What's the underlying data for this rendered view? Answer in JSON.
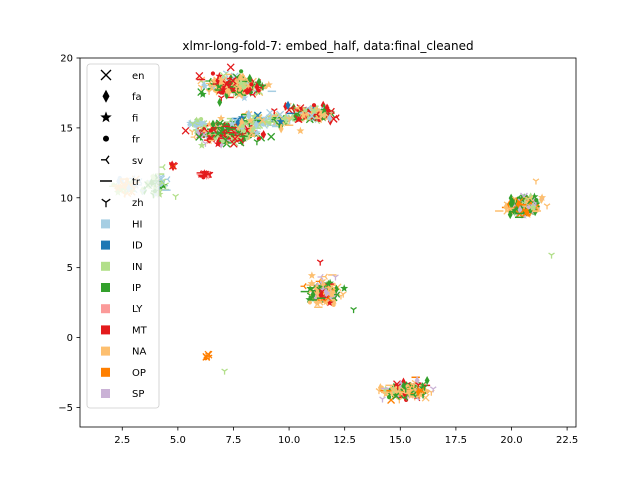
{
  "chart_data": {
    "type": "scatter",
    "title": "xlmr-long-fold-7: embed_half, data:final_cleaned",
    "xlabel": "",
    "ylabel": "",
    "xlim": [
      0.6,
      22.9
    ],
    "ylim": [
      -6.4,
      20.0
    ],
    "xticks": [
      2.5,
      5.0,
      7.5,
      10.0,
      12.5,
      15.0,
      17.5,
      20.0,
      22.5
    ],
    "xtick_labels": [
      "2.5",
      "5.0",
      "7.5",
      "10.0",
      "12.5",
      "15.0",
      "17.5",
      "20.0",
      "22.5"
    ],
    "yticks": [
      -5,
      0,
      5,
      10,
      15,
      20
    ],
    "ytick_labels": [
      "−5",
      "0",
      "5",
      "10",
      "15",
      "20"
    ],
    "grid": false,
    "legend_position": "upper-left",
    "marker_legend": [
      {
        "label": "en",
        "marker": "x-icon"
      },
      {
        "label": "fa",
        "marker": "thin-diamond-icon"
      },
      {
        "label": "fi",
        "marker": "star-icon"
      },
      {
        "label": "fr",
        "marker": "circle-icon"
      },
      {
        "label": "sv",
        "marker": "tri-left-icon"
      },
      {
        "label": "tr",
        "marker": "hline-icon"
      },
      {
        "label": "zh",
        "marker": "tri-down-icon"
      }
    ],
    "color_legend": [
      {
        "label": "HI",
        "color": "#a6cee3"
      },
      {
        "label": "ID",
        "color": "#1f78b4"
      },
      {
        "label": "IN",
        "color": "#b2df8a"
      },
      {
        "label": "IP",
        "color": "#33a02c"
      },
      {
        "label": "LY",
        "color": "#fb9a99"
      },
      {
        "label": "MT",
        "color": "#e31a1c"
      },
      {
        "label": "NA",
        "color": "#fdbf6f"
      },
      {
        "label": "OP",
        "color": "#ff7f00"
      },
      {
        "label": "SP",
        "color": "#cab2d6"
      }
    ],
    "clusters": [
      {
        "center": [
          7.5,
          18.0
        ],
        "spread": [
          1.2,
          0.7
        ],
        "n": 230,
        "mix": {
          "NA": 0.4,
          "MT": 0.25,
          "IP": 0.2,
          "HI": 0.08,
          "IN": 0.07
        }
      },
      {
        "center": [
          7.2,
          14.6
        ],
        "spread": [
          1.3,
          0.8
        ],
        "n": 260,
        "mix": {
          "IP": 0.4,
          "MT": 0.3,
          "NA": 0.15,
          "IN": 0.1,
          "SP": 0.05
        }
      },
      {
        "center": [
          8.8,
          15.5
        ],
        "spread": [
          1.5,
          0.6
        ],
        "n": 120,
        "mix": {
          "IN": 0.35,
          "HI": 0.25,
          "NA": 0.2,
          "ID": 0.1,
          "IP": 0.1
        }
      },
      {
        "center": [
          11.0,
          16.0
        ],
        "spread": [
          1.0,
          0.5
        ],
        "n": 160,
        "mix": {
          "MT": 0.3,
          "NA": 0.25,
          "IP": 0.2,
          "IN": 0.1,
          "ID": 0.05,
          "HI": 0.1
        }
      },
      {
        "center": [
          5.8,
          15.3
        ],
        "spread": [
          0.4,
          0.2
        ],
        "n": 20,
        "mix": {
          "HI": 0.6,
          "IN": 0.4
        }
      },
      {
        "center": [
          2.8,
          10.9
        ],
        "spread": [
          0.6,
          0.5
        ],
        "n": 60,
        "mix": {
          "NA": 0.55,
          "IN": 0.25,
          "HI": 0.2
        }
      },
      {
        "center": [
          4.0,
          11.0
        ],
        "spread": [
          0.5,
          0.7
        ],
        "n": 50,
        "mix": {
          "IN": 0.4,
          "IP": 0.3,
          "HI": 0.3
        }
      },
      {
        "center": [
          6.2,
          11.7
        ],
        "spread": [
          0.3,
          0.15
        ],
        "n": 18,
        "mix": {
          "MT": 0.85,
          "LY": 0.15
        }
      },
      {
        "center": [
          4.8,
          12.3
        ],
        "spread": [
          0.15,
          0.1
        ],
        "n": 6,
        "mix": {
          "MT": 0.5,
          "OP": 0.5
        }
      },
      {
        "center": [
          20.5,
          9.4
        ],
        "spread": [
          0.7,
          0.6
        ],
        "n": 210,
        "mix": {
          "IP": 0.35,
          "NA": 0.3,
          "OP": 0.15,
          "SP": 0.15,
          "IN": 0.05
        }
      },
      {
        "center": [
          11.6,
          3.2
        ],
        "spread": [
          0.7,
          0.9
        ],
        "n": 160,
        "mix": {
          "NA": 0.4,
          "IP": 0.25,
          "SP": 0.15,
          "MT": 0.1,
          "OP": 0.1
        }
      },
      {
        "center": [
          15.3,
          -3.8
        ],
        "spread": [
          0.9,
          0.5
        ],
        "n": 190,
        "mix": {
          "NA": 0.35,
          "IP": 0.2,
          "OP": 0.2,
          "MT": 0.1,
          "SP": 0.1,
          "IN": 0.05
        }
      },
      {
        "center": [
          6.3,
          -1.3
        ],
        "spread": [
          0.2,
          0.2
        ],
        "n": 6,
        "mix": {
          "OP": 1.0
        }
      }
    ],
    "outliers": [
      {
        "x": 21.8,
        "y": 5.9,
        "group": "IN"
      },
      {
        "x": 21.1,
        "y": 11.2,
        "group": "NA"
      },
      {
        "x": 7.1,
        "y": -2.4,
        "group": "IN"
      },
      {
        "x": 12.9,
        "y": 2.0,
        "group": "IP"
      },
      {
        "x": 4.9,
        "y": 10.1,
        "group": "IN"
      },
      {
        "x": 11.4,
        "y": 5.4,
        "group": "MT"
      },
      {
        "x": 14.2,
        "y": -4.4,
        "group": "SP"
      }
    ]
  }
}
